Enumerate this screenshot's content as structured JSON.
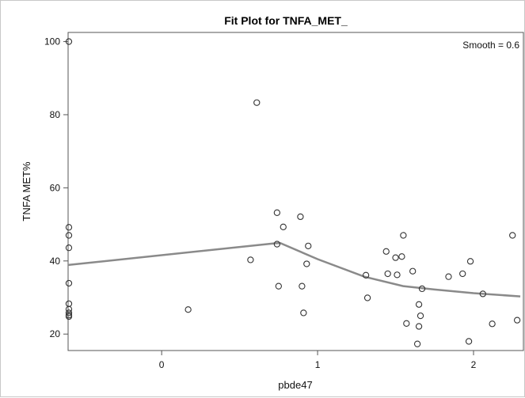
{
  "chart_data": {
    "type": "scatter",
    "title": "Fit Plot for TNFA_MET_",
    "xlabel": "pbde47",
    "ylabel": "TNFA MET%",
    "annotation": "Smooth = 0.6",
    "xlim": [
      -0.6,
      2.32
    ],
    "ylim": [
      15.5,
      102.5
    ],
    "xticks": [
      0,
      1,
      2
    ],
    "yticks": [
      20,
      40,
      60,
      80,
      100
    ],
    "grid": false,
    "colors": {
      "points": "#333333",
      "fit_line": "#8a8a8a",
      "axes": "#555555"
    },
    "series": [
      {
        "kind": "points",
        "x": [
          -0.595,
          -0.595,
          -0.595,
          -0.595,
          -0.595,
          -0.595,
          -0.595,
          -0.595,
          -0.595,
          -0.595,
          0.17,
          0.57,
          0.61,
          0.74,
          0.74,
          0.75,
          0.78,
          0.89,
          0.9,
          0.91,
          0.93,
          0.94,
          1.31,
          1.32,
          1.44,
          1.45,
          1.5,
          1.51,
          1.54,
          1.55,
          1.57,
          1.61,
          1.64,
          1.65,
          1.65,
          1.66,
          1.67,
          1.84,
          1.93,
          1.97,
          1.98,
          2.06,
          2.12,
          2.25,
          2.28
        ],
        "y": [
          100,
          49.2,
          47,
          43.6,
          33.9,
          28.3,
          26.8,
          25.8,
          25.2,
          24.8,
          26.7,
          40.3,
          83.3,
          53.2,
          44.6,
          33.1,
          49.3,
          52.1,
          33.1,
          25.8,
          39.2,
          44.1,
          36.1,
          29.9,
          42.6,
          36.5,
          40.9,
          36.2,
          41.2,
          47,
          22.9,
          37.2,
          17.3,
          28.1,
          22.1,
          25,
          32.4,
          35.7,
          36.5,
          18.0,
          39.9,
          31.0,
          22.8,
          47,
          23.8
        ]
      },
      {
        "kind": "fit",
        "x": [
          -0.6,
          0.72,
          0.76,
          1.0,
          1.3,
          1.55,
          1.75,
          2.0,
          2.3
        ],
        "y": [
          38.9,
          44.8,
          44.9,
          40.5,
          35.7,
          33.1,
          32.2,
          31.2,
          30.3
        ]
      }
    ]
  }
}
